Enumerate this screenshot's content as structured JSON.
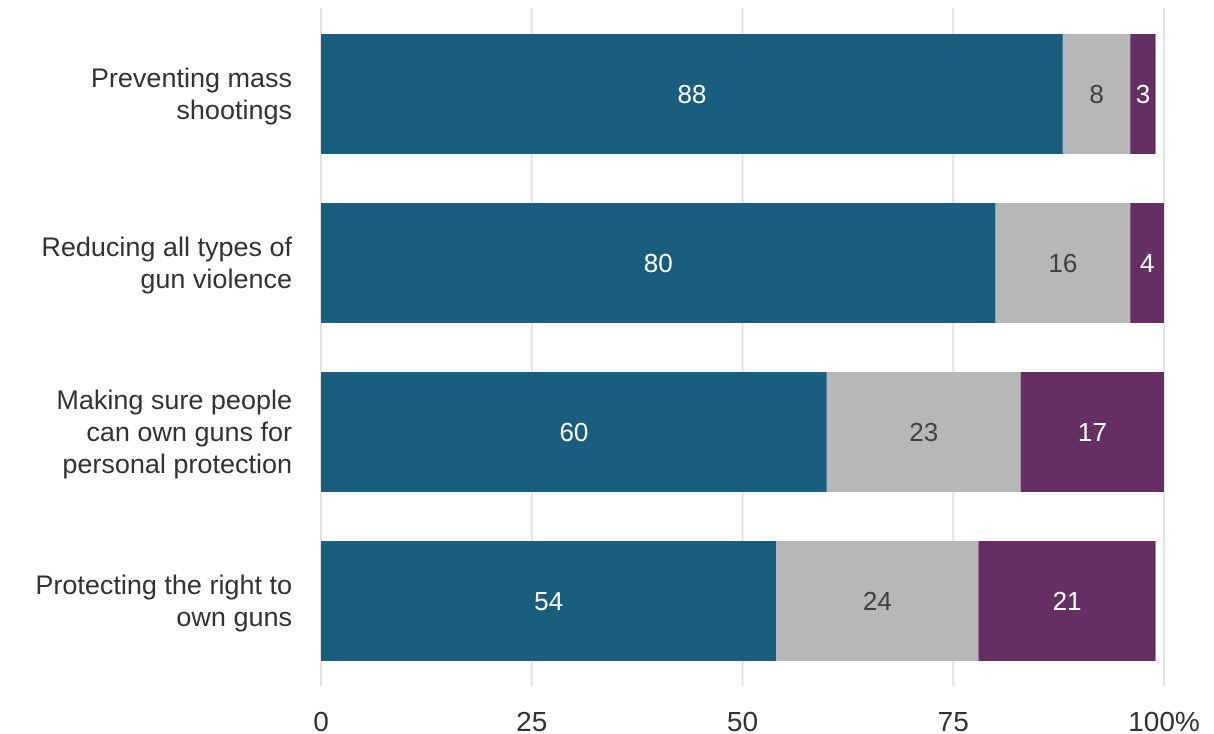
{
  "chart_data": {
    "type": "bar",
    "orientation": "horizontal",
    "stacked": true,
    "categories": [
      [
        "Preventing mass",
        "shootings"
      ],
      [
        "Reducing all types of",
        "gun violence"
      ],
      [
        "Making sure people",
        "can own guns for",
        "personal protection"
      ],
      [
        "Protecting the right to",
        "own guns"
      ]
    ],
    "series": [
      {
        "values": [
          88,
          80,
          60,
          54
        ],
        "color": "#195e7e",
        "label_color": "#ffffff"
      },
      {
        "values": [
          8,
          16,
          23,
          24
        ],
        "color": "#b7b7b7",
        "label_color": "#404040"
      },
      {
        "values": [
          3,
          4,
          17,
          21
        ],
        "color": "#662f63",
        "label_color": "#ffffff"
      }
    ],
    "xlim": [
      0,
      100
    ],
    "xticks": [
      "0",
      "25",
      "50",
      "75",
      "100%"
    ],
    "xtick_values": [
      0,
      25,
      50,
      75,
      100
    ],
    "grid": "vertical"
  }
}
